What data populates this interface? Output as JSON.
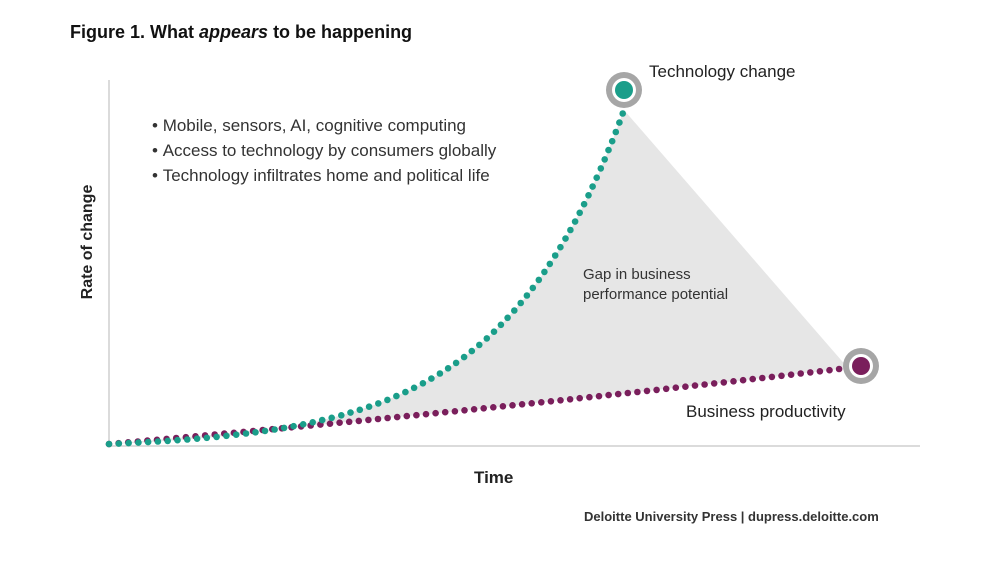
{
  "title": {
    "prefix": "Figure 1. What ",
    "emphasis": "appears",
    "suffix": " to be happening"
  },
  "bullets": [
    "Mobile, sensors, AI, cognitive computing",
    "Access to technology by consumers globally",
    "Technology infiltrates home and political life"
  ],
  "axes": {
    "y_label": "Rate of change",
    "x_label": "Time"
  },
  "gap_label": {
    "line1": "Gap in business",
    "line2": "performance potential"
  },
  "series": {
    "technology": {
      "label": "Technology change",
      "color": "#1a9e8a"
    },
    "business": {
      "label": "Business productivity",
      "color": "#7a1f5c"
    }
  },
  "colors": {
    "gap_fill": "#e6e6e6",
    "axis": "#cfcfcf",
    "marker_ring": "#a6a6a6"
  },
  "source": "Deloitte University Press  |  dupress.deloitte.com"
}
